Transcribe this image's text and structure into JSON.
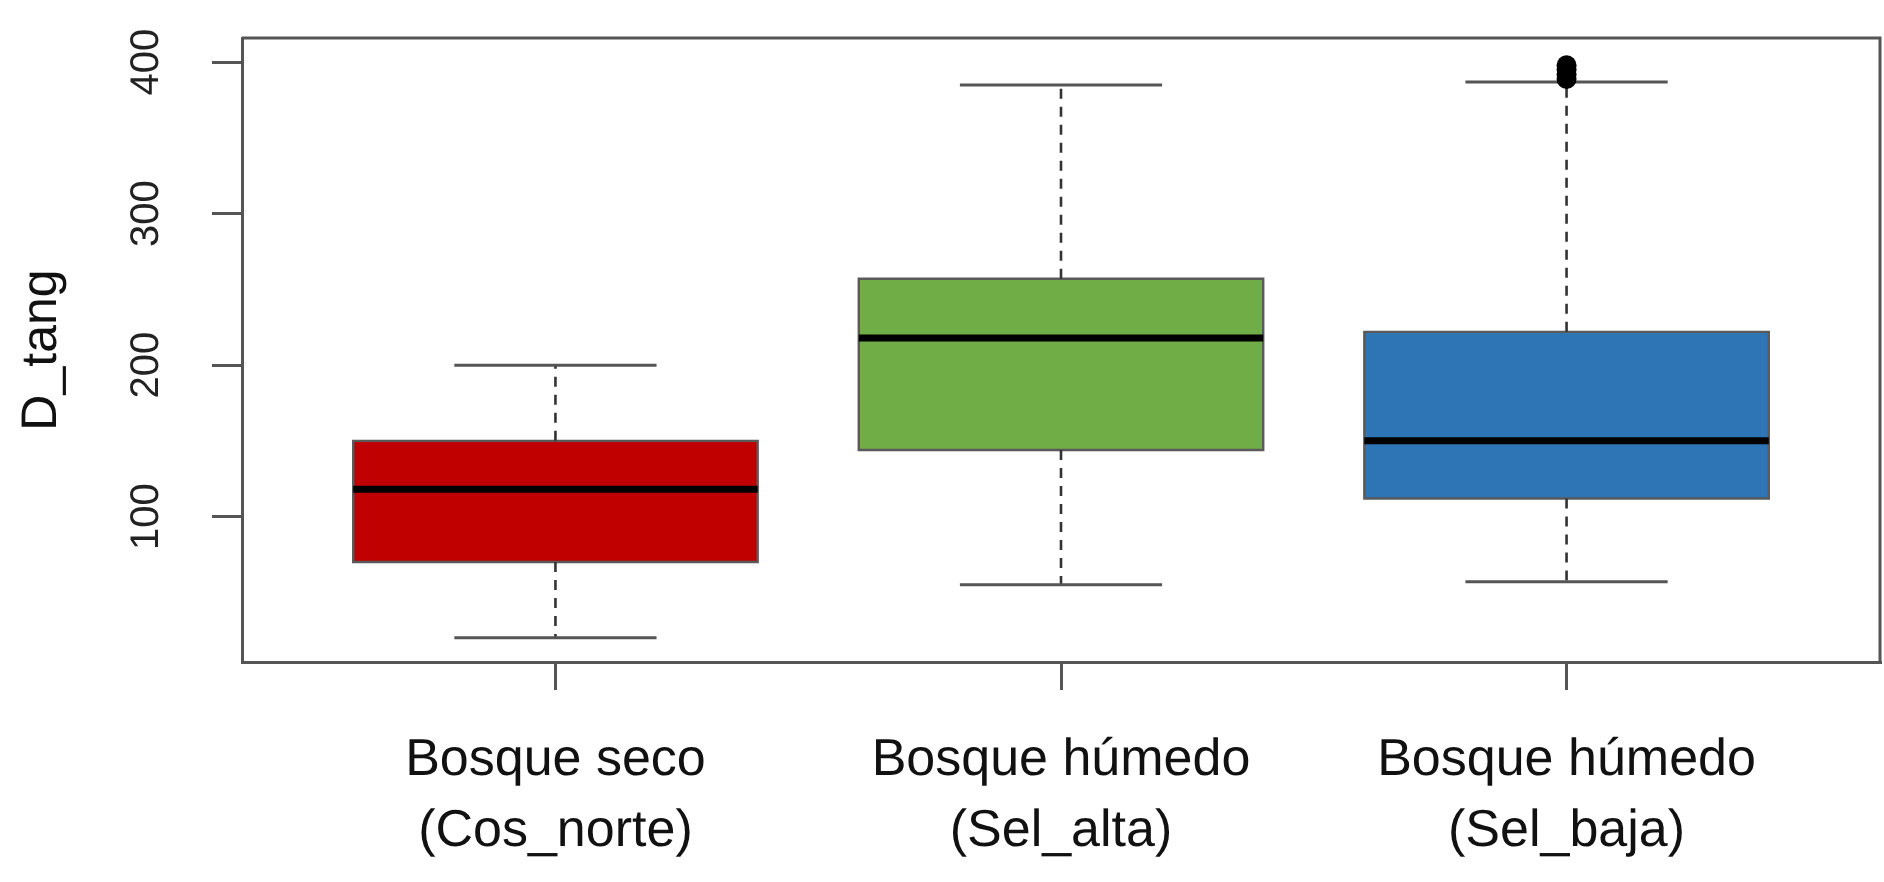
{
  "chart_data": {
    "type": "box",
    "categories": [
      "Bosque seco\n(Cos_norte)",
      "Bosque húmedo\n(Sel_alta)",
      "Bosque húmedo\n(Sel_baja)"
    ],
    "ylabel": "D_tang",
    "ylim": [
      4,
      416
    ],
    "yticks": [
      100,
      200,
      300,
      400
    ],
    "colors": [
      "#c00000",
      "#70ad47",
      "#2e75b6"
    ],
    "boxes": [
      {
        "low": 20,
        "q1": 70,
        "median": 118,
        "q3": 150,
        "high": 200
      },
      {
        "low": 55,
        "q1": 144,
        "median": 218,
        "q3": 257,
        "high": 385
      },
      {
        "low": 57,
        "q1": 112,
        "median": 150,
        "q3": 222,
        "high": 387,
        "outliers": [
          389,
          392,
          395,
          398
        ]
      }
    ]
  }
}
